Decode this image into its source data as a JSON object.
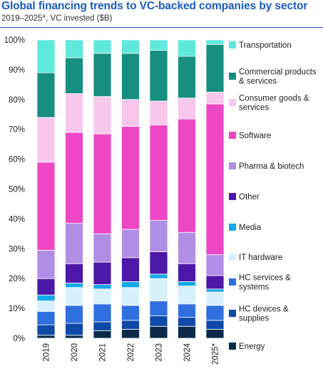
{
  "header": {
    "title": "Global financing trends to VC-backed companies by sector",
    "subtitle": "2019–2025*, VC invested ($B)"
  },
  "colors": {
    "Energy": "#0b2a4a",
    "HC devices & supplies": "#0f4aa8",
    "HC services & systems": "#2f6fe0",
    "IT hardware": "#d6f1fb",
    "Media": "#13a8e8",
    "Other": "#4d17a8",
    "Pharma & biotech": "#b08ee6",
    "Software": "#ee47c6",
    "Consumer goods & services": "#f8c7ec",
    "Commercial products & services": "#178f80",
    "Transportation": "#5fe8dc"
  },
  "chart_data": {
    "type": "bar",
    "stacked": true,
    "percent": true,
    "categories": [
      "2019",
      "2020",
      "2021",
      "2022",
      "2023",
      "2024",
      "2025*"
    ],
    "ylim": [
      0,
      100
    ],
    "yticks": [
      0,
      10,
      20,
      30,
      40,
      50,
      60,
      70,
      80,
      90,
      100
    ],
    "ytick_labels": [
      "0%",
      "10%",
      "20%",
      "30%",
      "40%",
      "50%",
      "60%",
      "70%",
      "80%",
      "90%",
      "100%"
    ],
    "legend_position": "right",
    "series": [
      {
        "name": "Energy",
        "values": [
          1,
          1,
          2.5,
          3,
          4,
          4,
          3
        ]
      },
      {
        "name": "HC devices & supplies",
        "values": [
          3.5,
          4,
          3,
          3,
          3.5,
          3,
          3
        ]
      },
      {
        "name": "HC services & systems",
        "values": [
          4.5,
          6,
          6,
          5,
          5,
          4.5,
          5
        ]
      },
      {
        "name": "IT hardware",
        "values": [
          3.5,
          6,
          5,
          6,
          7.5,
          6,
          4.5
        ]
      },
      {
        "name": "Media",
        "values": [
          2,
          1.5,
          1.5,
          2,
          1.5,
          1.5,
          1
        ]
      },
      {
        "name": "Other",
        "values": [
          5.5,
          6.5,
          7.5,
          8,
          7.5,
          6,
          4.5
        ]
      },
      {
        "name": "Pharma & biotech",
        "values": [
          9.5,
          13.5,
          9.5,
          9.5,
          10.5,
          10.5,
          7
        ]
      },
      {
        "name": "Software",
        "values": [
          29.5,
          30.5,
          33.5,
          34.5,
          32,
          38,
          50.5
        ]
      },
      {
        "name": "Consumer goods & services",
        "values": [
          15,
          13,
          12.5,
          9,
          8,
          7,
          4
        ]
      },
      {
        "name": "Commercial products & services",
        "values": [
          15,
          12,
          14.5,
          15.5,
          17,
          14,
          16
        ]
      },
      {
        "name": "Transportation",
        "values": [
          11,
          6,
          4.5,
          4.5,
          3.5,
          5.5,
          1.5
        ]
      }
    ]
  }
}
